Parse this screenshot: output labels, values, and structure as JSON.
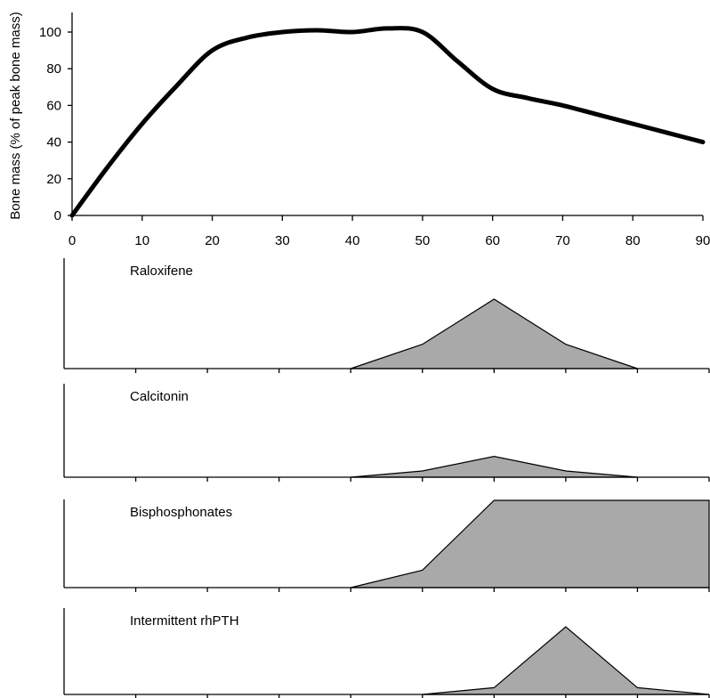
{
  "chart_data": [
    {
      "type": "line",
      "title": "",
      "xlabel": "",
      "ylabel": "Bone mass (% of peak bone mass)",
      "xlim": [
        0,
        90
      ],
      "ylim": [
        0,
        110
      ],
      "x_ticks": [
        "0",
        "10",
        "20",
        "30",
        "40",
        "50",
        "60",
        "70",
        "80",
        "90"
      ],
      "y_ticks": [
        "0",
        "20",
        "40",
        "60",
        "80",
        "100"
      ],
      "grid": false,
      "series": [
        {
          "x": [
            0,
            5,
            10,
            15,
            20,
            25,
            30,
            35,
            40,
            45,
            50,
            55,
            60,
            65,
            70,
            75,
            80,
            85,
            90
          ],
          "y": [
            0,
            26,
            50,
            71,
            90,
            97,
            100,
            101,
            100,
            102,
            100,
            84,
            69,
            64,
            60,
            55,
            50,
            45,
            40
          ]
        }
      ]
    },
    {
      "type": "area",
      "label": "Raloxifene",
      "x": [
        40,
        50,
        60,
        70,
        80
      ],
      "y": [
        0,
        0.35,
        1,
        0.35,
        0
      ]
    },
    {
      "type": "area",
      "label": "Calcitonin",
      "x": [
        40,
        50,
        60,
        70,
        80
      ],
      "y": [
        0,
        0.09,
        0.3,
        0.09,
        0
      ]
    },
    {
      "type": "area",
      "label": "Bisphosphonates",
      "x": [
        40,
        50,
        60,
        70,
        80,
        90
      ],
      "y": [
        0,
        0.2,
        1,
        1,
        1,
        1
      ]
    },
    {
      "type": "area",
      "label": "Intermittent rhPTH",
      "x": [
        50,
        60,
        70,
        80,
        90
      ],
      "y": [
        0,
        0.05,
        0.5,
        0.05,
        0
      ]
    }
  ]
}
